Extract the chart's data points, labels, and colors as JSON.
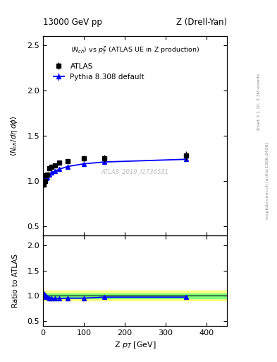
{
  "header_left": "13000 GeV pp",
  "header_right": "Z (Drell-Yan)",
  "right_label": "Rivet 3.1.10, 3.3M events",
  "right_label2": "mcplots.cern.ch [arXiv:1306.3436]",
  "watermark": "ATLAS_2019_I1736531",
  "atlas_color": "black",
  "pythia_color": "#0000ff",
  "band_yellow": "#ffff80",
  "band_green": "#80ff80",
  "band_yellow_range": [
    0.9,
    1.1
  ],
  "band_green_range": [
    0.95,
    1.05
  ],
  "xlim": [
    0,
    450
  ],
  "ylim_main": [
    0.4,
    2.6
  ],
  "ylim_ratio": [
    0.4,
    2.2
  ],
  "yticks_main": [
    0.5,
    1.0,
    1.5,
    2.0,
    2.5
  ],
  "yticks_ratio": [
    0.5,
    1.0,
    1.5,
    2.0
  ],
  "xticks": [
    0,
    100,
    200,
    300,
    400
  ],
  "atlas_x": [
    2.5,
    5.0,
    7.5,
    10,
    15,
    20,
    30,
    40,
    60,
    100,
    150,
    350
  ],
  "atlas_y": [
    0.96,
    1.0,
    1.06,
    1.07,
    1.14,
    1.16,
    1.17,
    1.2,
    1.22,
    1.25,
    1.25,
    1.28
  ],
  "atlas_yerr": [
    0.03,
    0.02,
    0.02,
    0.02,
    0.02,
    0.02,
    0.02,
    0.02,
    0.02,
    0.03,
    0.04,
    0.05
  ],
  "pythia_x": [
    2.5,
    5.0,
    7.5,
    10,
    15,
    20,
    30,
    40,
    60,
    100,
    150,
    350
  ],
  "pythia_y": [
    1.01,
    1.01,
    1.03,
    1.04,
    1.07,
    1.09,
    1.11,
    1.13,
    1.16,
    1.19,
    1.21,
    1.24
  ],
  "pythia_yerr": [
    0.005,
    0.005,
    0.005,
    0.005,
    0.005,
    0.005,
    0.005,
    0.005,
    0.005,
    0.005,
    0.005,
    0.01
  ],
  "ratio_pythia_y": [
    1.05,
    1.01,
    0.97,
    0.97,
    0.94,
    0.94,
    0.95,
    0.94,
    0.95,
    0.95,
    0.97,
    0.97
  ],
  "ratio_pythia_yerr": [
    0.02,
    0.01,
    0.01,
    0.01,
    0.01,
    0.01,
    0.01,
    0.01,
    0.01,
    0.01,
    0.01,
    0.015
  ]
}
